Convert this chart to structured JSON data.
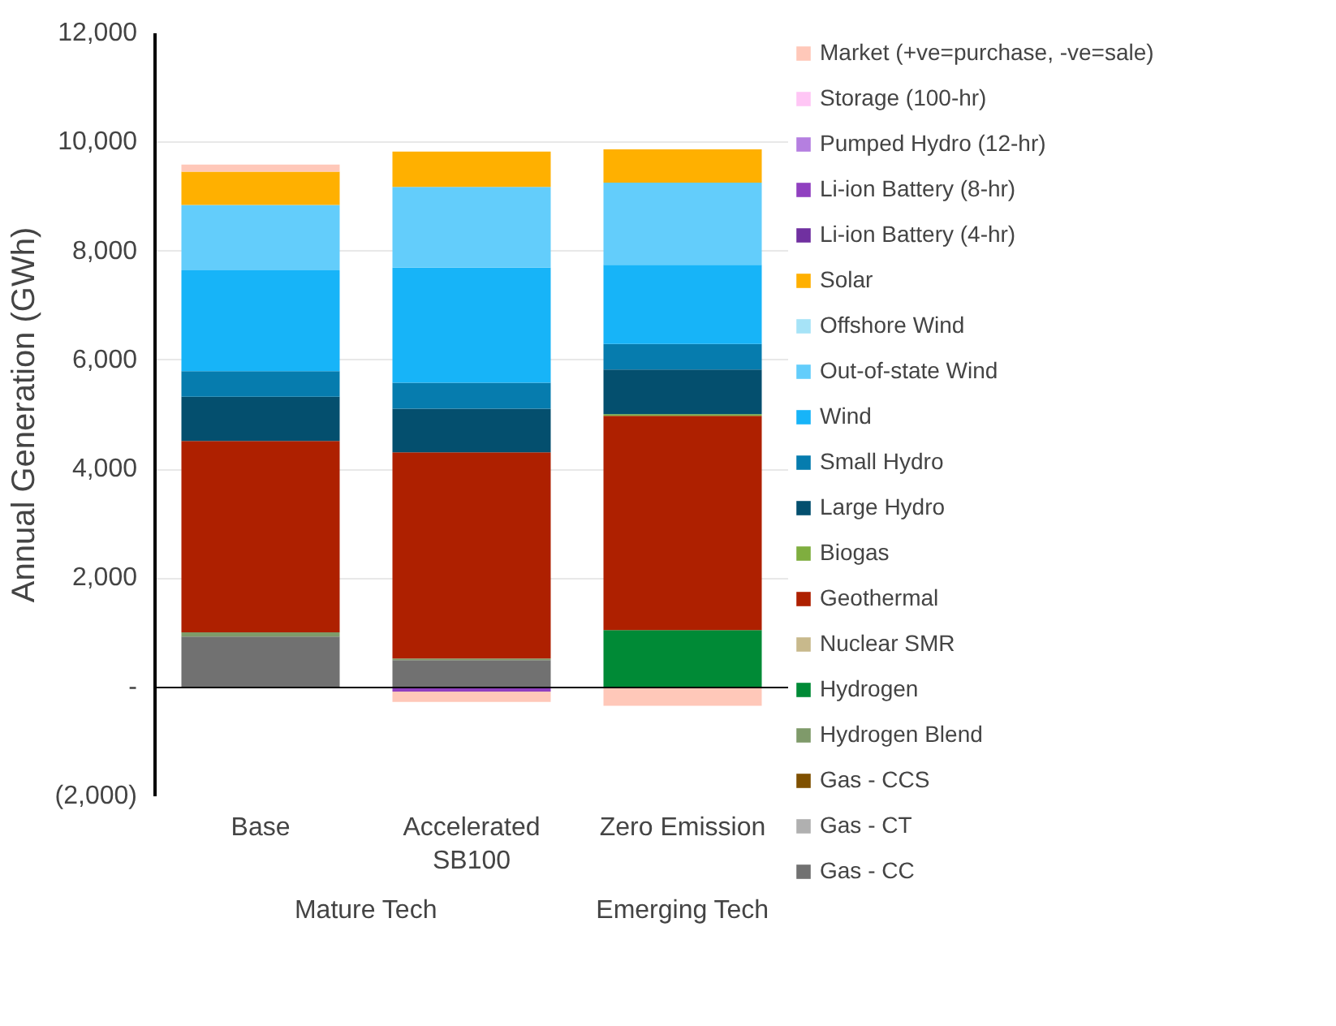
{
  "chart_data": {
    "type": "bar",
    "stacked": true,
    "ylabel": "Annual Generation (GWh)",
    "categories": [
      "Base",
      "Accelerated SB100",
      "Zero Emission"
    ],
    "annotations": [
      "Mature Tech",
      "Emerging Tech"
    ],
    "ylim": [
      -2000,
      12000
    ],
    "yticks": [
      {
        "value": -2000,
        "label": "(2,000)"
      },
      {
        "value": 0,
        "label": "-"
      },
      {
        "value": 2000,
        "label": "2,000"
      },
      {
        "value": 4000,
        "label": "4,000"
      },
      {
        "value": 6000,
        "label": "6,000"
      },
      {
        "value": 8000,
        "label": "8,000"
      },
      {
        "value": 10000,
        "label": "10,000"
      },
      {
        "value": 12000,
        "label": "12,000"
      }
    ],
    "grid": "y",
    "legend": "right",
    "series": [
      {
        "name": "Gas - CC",
        "color": "#717171",
        "values": [
          930,
          500,
          0
        ]
      },
      {
        "name": "Gas - CT",
        "color": "#b0b0b0",
        "values": [
          0,
          0,
          0
        ]
      },
      {
        "name": "Gas - CCS",
        "color": "#7f5000",
        "values": [
          0,
          0,
          0
        ]
      },
      {
        "name": "Hydrogen Blend",
        "color": "#7f9a6a",
        "values": [
          80,
          30,
          0
        ]
      },
      {
        "name": "Hydrogen",
        "color": "#008a36",
        "values": [
          0,
          0,
          1050
        ]
      },
      {
        "name": "Nuclear SMR",
        "color": "#c8b98c",
        "values": [
          0,
          0,
          0
        ]
      },
      {
        "name": "Geothermal",
        "color": "#ae2000",
        "values": [
          3510,
          3780,
          3930
        ]
      },
      {
        "name": "Biogas",
        "color": "#7fae3f",
        "values": [
          0,
          0,
          30
        ]
      },
      {
        "name": "Large Hydro",
        "color": "#044f6e",
        "values": [
          810,
          800,
          820
        ]
      },
      {
        "name": "Small Hydro",
        "color": "#067cae",
        "values": [
          470,
          480,
          470
        ]
      },
      {
        "name": "Wind",
        "color": "#17b4f8",
        "values": [
          1850,
          2110,
          1450
        ]
      },
      {
        "name": "Out-of-state Wind",
        "color": "#63cdfb",
        "values": [
          1200,
          1480,
          1510
        ]
      },
      {
        "name": "Offshore Wind",
        "color": "#a6e3f7",
        "values": [
          0,
          0,
          0
        ]
      },
      {
        "name": "Solar",
        "color": "#ffb000",
        "values": [
          610,
          650,
          610
        ]
      },
      {
        "name": "Li-ion Battery (4-hr)",
        "color": "#7030a0",
        "values": [
          0,
          0,
          0
        ]
      },
      {
        "name": "Li-ion Battery (8-hr)",
        "color": "#9040c0",
        "values": [
          0,
          -80,
          0
        ]
      },
      {
        "name": "Pumped Hydro (12-hr)",
        "color": "#b57fe0",
        "values": [
          0,
          0,
          0
        ]
      },
      {
        "name": "Storage (100-hr)",
        "color": "#ffc6f5",
        "values": [
          0,
          0,
          0
        ]
      },
      {
        "name": "Market (+ve=purchase, -ve=sale)",
        "color": "#ffc8b9",
        "values": [
          130,
          -190,
          -340
        ]
      }
    ]
  }
}
